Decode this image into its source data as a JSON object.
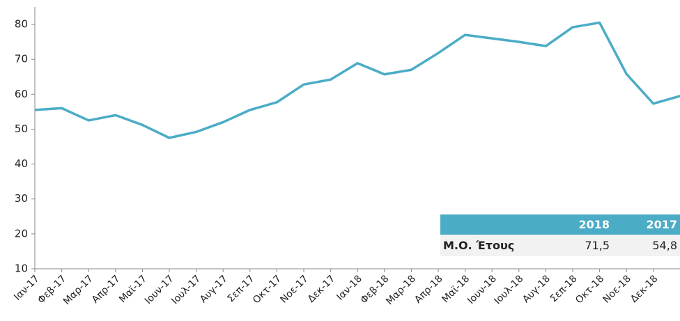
{
  "chart_data": {
    "type": "line",
    "categories": [
      "Ιαν-17",
      "Φεβ-17",
      "Μαρ-17",
      "Απρ-17",
      "Μαϊ-17",
      "Ιουν-17",
      "Ιουλ-17",
      "Αυγ-17",
      "Σεπ-17",
      "Οκτ-17",
      "Νοε-17",
      "Δεκ-17",
      "Ιαν-18",
      "Φεβ-18",
      "Μαρ-18",
      "Απρ-18",
      "Μαϊ-18",
      "Ιουν-18",
      "Ιουλ-18",
      "Αυγ-18",
      "Σεπ-18",
      "Οκτ-18",
      "Νοε-18",
      "Δεκ-18",
      null
    ],
    "values": [
      55.5,
      56,
      52.5,
      54,
      51.2,
      47.5,
      49.2,
      52,
      55.5,
      57.7,
      62.8,
      64.2,
      68.9,
      65.7,
      67,
      71.8,
      77,
      76,
      75,
      73.8,
      79.2,
      80.5,
      65.8,
      57.3,
      59.5
    ],
    "color": "#4bacc6",
    "ylim": [
      10,
      85
    ],
    "yticks": [
      10,
      20,
      30,
      40,
      50,
      60,
      70,
      80
    ],
    "table": {
      "columns": [
        "2018",
        "2017"
      ],
      "rows": [
        {
          "label": "Μ.Ο. Έτους",
          "values": [
            "71,5",
            "54,8"
          ]
        }
      ]
    }
  }
}
